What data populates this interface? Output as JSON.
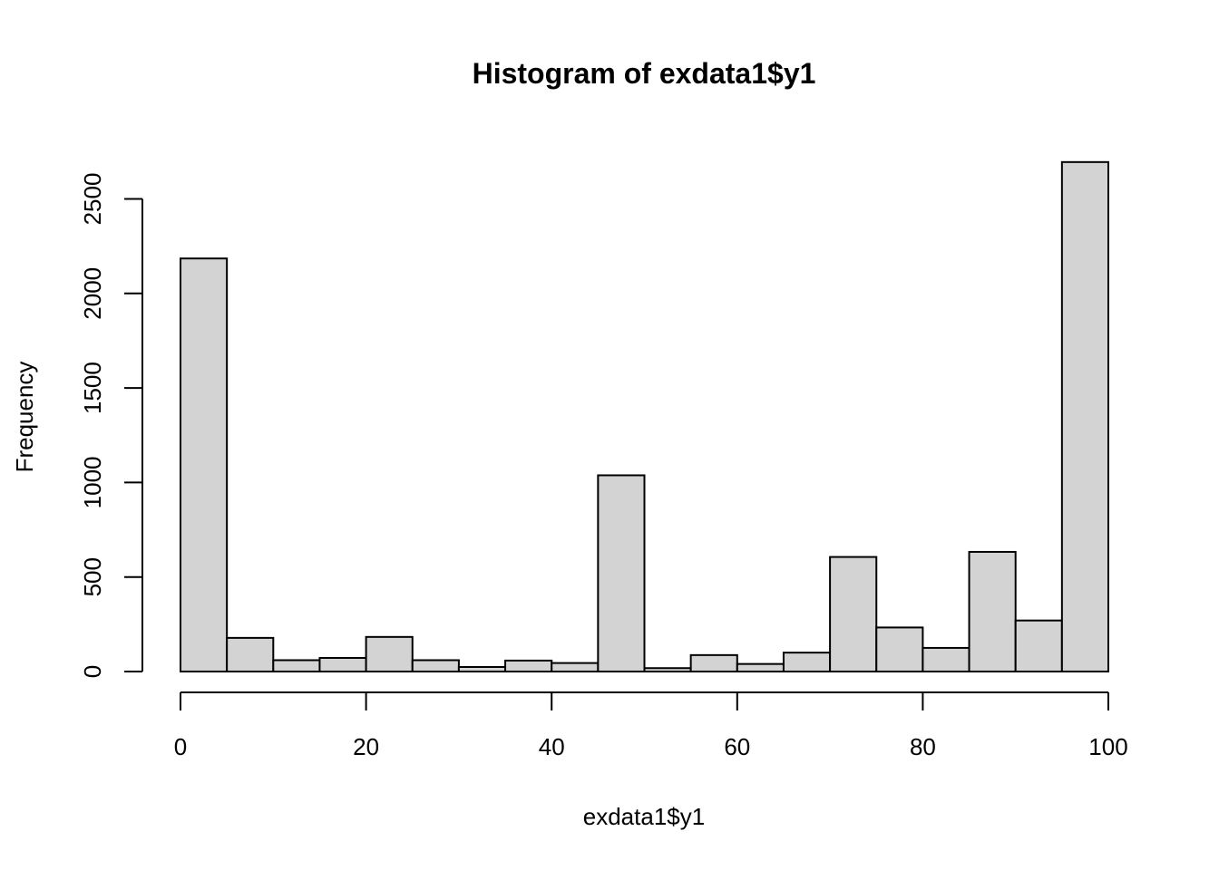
{
  "chart_data": {
    "type": "bar",
    "subtype": "histogram",
    "title": "Histogram of exdata1$y1",
    "xlabel": "exdata1$y1",
    "ylabel": "Frequency",
    "bin_edges": [
      0,
      5,
      10,
      15,
      20,
      25,
      30,
      35,
      40,
      45,
      50,
      55,
      60,
      65,
      70,
      75,
      80,
      85,
      90,
      95,
      100
    ],
    "values": [
      2185,
      178,
      60,
      72,
      183,
      60,
      24,
      58,
      45,
      1038,
      18,
      87,
      40,
      100,
      606,
      233,
      125,
      633,
      270,
      2695
    ],
    "xlim": [
      0,
      100
    ],
    "ylim": [
      0,
      2700
    ],
    "x_ticks": [
      0,
      20,
      40,
      60,
      80,
      100
    ],
    "x_tick_labels": [
      "0",
      "20",
      "40",
      "60",
      "80",
      "100"
    ],
    "y_ticks": [
      0,
      500,
      1000,
      1500,
      2000,
      2500
    ],
    "y_tick_labels": [
      "0",
      "500",
      "1000",
      "1500",
      "2000",
      "2500"
    ],
    "grid": false,
    "legend": "none",
    "colors": {
      "bar_fill": "#d3d3d3",
      "bar_stroke": "#000000",
      "axis": "#000000",
      "background": "#ffffff"
    }
  }
}
